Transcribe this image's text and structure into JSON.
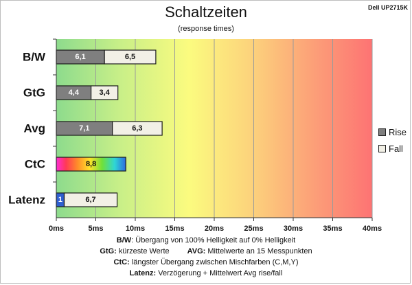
{
  "colors": {
    "rise": "#7f7f7f",
    "fall": "#f2f0e6",
    "latency_first": "#2f5fd0",
    "background_gradient": [
      "#8ddb8d",
      "#c8ef88",
      "#fbfb7f",
      "#fcd27c",
      "#fc9e78",
      "#fd7373"
    ]
  },
  "chart_data": {
    "type": "bar",
    "orientation": "horizontal",
    "stacked": true,
    "title": "Schaltzeiten",
    "subtitle": "(response times)",
    "model": "Dell UP2715K",
    "categories": [
      "B/W",
      "GtG",
      "Avg",
      "CtC",
      "Latenz"
    ],
    "series": [
      {
        "name": "Rise",
        "values": [
          6.1,
          4.4,
          7.1,
          null,
          null
        ]
      },
      {
        "name": "Fall",
        "values": [
          6.5,
          3.4,
          6.3,
          null,
          null
        ]
      }
    ],
    "ctc_value": 8.8,
    "latency_values": [
      1,
      6.7
    ],
    "data_labels": [
      [
        "6,1",
        "6,5"
      ],
      [
        "4,4",
        "3,4"
      ],
      [
        "7,1",
        "6,3"
      ],
      [
        "8,8"
      ],
      [
        "1",
        "6,7"
      ]
    ],
    "xlim": [
      0,
      40
    ],
    "xticks": [
      0,
      5,
      10,
      15,
      20,
      25,
      30,
      35,
      40
    ],
    "xtick_labels": [
      "0ms",
      "5ms",
      "10ms",
      "15ms",
      "20ms",
      "25ms",
      "30ms",
      "35ms",
      "40ms"
    ],
    "grid": true,
    "legend": {
      "position": "right",
      "entries": [
        "Rise",
        "Fall"
      ]
    }
  },
  "footnotes": {
    "bw_label": "B/W",
    "bw_text": ":  Übergang von 100% Helligkeit auf 0% Helligkeit",
    "gtg_label": "GtG:",
    "gtg_text": " kürzeste  Werte",
    "avg_label": "AVG:",
    "avg_text": " Mittelwerte  an 15 Messpunkten",
    "ctc_label": "CtC:",
    "ctc_text": " längster Übergang  zwischen Mischfarben  (C,M,Y)",
    "lat_label": "Latenz:",
    "lat_text": " Verzögerung  + Mittelwert  Avg rise/fall"
  }
}
